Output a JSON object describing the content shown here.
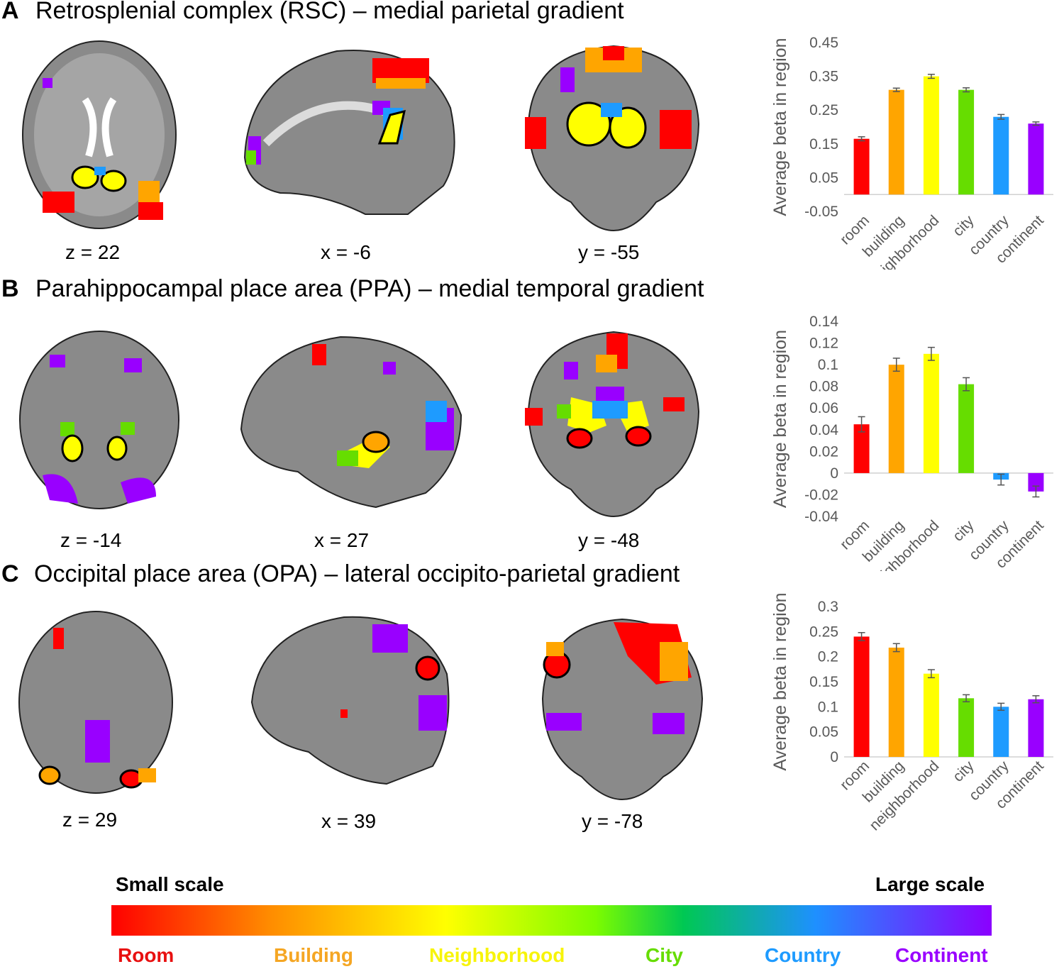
{
  "panels": [
    {
      "letter": "A",
      "title": "Retrosplenial complex (RSC) – medial parietal gradient",
      "slices": [
        "z = 22",
        "x = -6",
        "y = -55"
      ]
    },
    {
      "letter": "B",
      "title": "Parahippocampal place area (PPA) – medial temporal gradient",
      "slices": [
        "z = -14",
        "x = 27",
        "y = -48"
      ]
    },
    {
      "letter": "C",
      "title": "Occipital place area (OPA) – lateral occipito-parietal gradient",
      "slices": [
        "z = 29",
        "x = 39",
        "y = -78"
      ]
    }
  ],
  "chart_data": [
    {
      "type": "bar",
      "panel": "A",
      "categories": [
        "room",
        "building",
        "neighborhood",
        "city",
        "country",
        "continent"
      ],
      "values": [
        0.165,
        0.31,
        0.35,
        0.31,
        0.23,
        0.21
      ],
      "errors": [
        0.006,
        0.005,
        0.006,
        0.006,
        0.007,
        0.005
      ],
      "colors": [
        "#ff0000",
        "#ffa500",
        "#ffff00",
        "#66dd00",
        "#1e9bff",
        "#9900ff"
      ],
      "ylabel": "Average beta in region",
      "ylim": [
        -0.05,
        0.45
      ],
      "yticks": [
        "-0.05",
        "0.05",
        "0.15",
        "0.25",
        "0.35",
        "0.45"
      ]
    },
    {
      "type": "bar",
      "panel": "B",
      "categories": [
        "room",
        "building",
        "neighborhood",
        "city",
        "country",
        "continent"
      ],
      "values": [
        0.045,
        0.1,
        0.11,
        0.082,
        -0.006,
        -0.017
      ],
      "errors": [
        0.007,
        0.006,
        0.006,
        0.006,
        0.005,
        0.005
      ],
      "colors": [
        "#ff0000",
        "#ffa500",
        "#ffff00",
        "#66dd00",
        "#1e9bff",
        "#9900ff"
      ],
      "ylabel": "Average beta in region",
      "ylim": [
        -0.04,
        0.14
      ],
      "yticks": [
        "-0.04",
        "-0.02",
        "0",
        "0.02",
        "0.04",
        "0.06",
        "0.08",
        "0.1",
        "0.12",
        "0.14"
      ]
    },
    {
      "type": "bar",
      "panel": "C",
      "categories": [
        "room",
        "building",
        "neighborhood",
        "city",
        "country",
        "continent"
      ],
      "values": [
        0.24,
        0.218,
        0.166,
        0.117,
        0.1,
        0.115
      ],
      "errors": [
        0.008,
        0.008,
        0.008,
        0.007,
        0.007,
        0.007
      ],
      "colors": [
        "#ff0000",
        "#ffa500",
        "#ffff00",
        "#66dd00",
        "#1e9bff",
        "#9900ff"
      ],
      "ylabel": "Average beta in region",
      "ylim": [
        0,
        0.3
      ],
      "yticks": [
        "0",
        "0.05",
        "0.1",
        "0.15",
        "0.2",
        "0.25",
        "0.3"
      ]
    }
  ],
  "scale_bar": {
    "left_label": "Small scale",
    "right_label": "Large scale",
    "categories": [
      {
        "label": "Room",
        "color": "#ff0000"
      },
      {
        "label": "Building",
        "color": "#ffa500"
      },
      {
        "label": "Neighborhood",
        "color": "#ffff00"
      },
      {
        "label": "City",
        "color": "#66dd00"
      },
      {
        "label": "Country",
        "color": "#1e9bff"
      },
      {
        "label": "Continent",
        "color": "#9900ff"
      }
    ]
  }
}
